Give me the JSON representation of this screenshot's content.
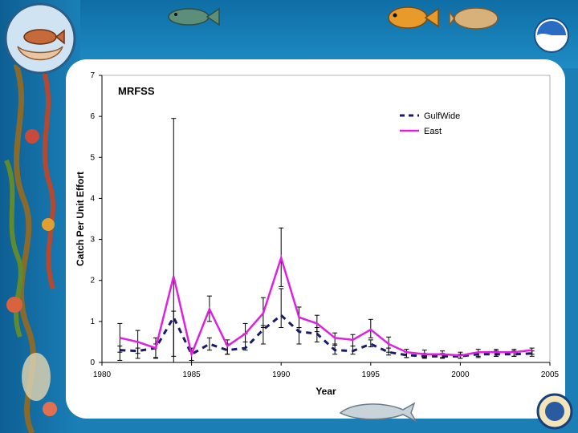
{
  "chart_data": {
    "type": "line",
    "title": "MRFSS",
    "xlabel": "Year",
    "ylabel": "Catch Per Unit Effort",
    "xlim": [
      1980,
      2005
    ],
    "ylim": [
      0,
      7
    ],
    "x_ticks": [
      1980,
      1985,
      1990,
      1995,
      2000,
      2005
    ],
    "y_ticks": [
      0,
      1,
      2,
      3,
      4,
      5,
      6,
      7
    ],
    "legend_position": "top-right",
    "series": [
      {
        "name": "GulfWide",
        "style": "dashed",
        "color": "#1a1a66",
        "x": [
          1981,
          1982,
          1983,
          1984,
          1985,
          1986,
          1987,
          1988,
          1989,
          1990,
          1991,
          1992,
          1993,
          1994,
          1995,
          1996,
          1997,
          1998,
          1999,
          2000,
          2001,
          2002,
          2003,
          2004
        ],
        "y": [
          0.3,
          0.28,
          0.35,
          1.1,
          0.2,
          0.45,
          0.3,
          0.35,
          0.8,
          1.15,
          0.75,
          0.7,
          0.3,
          0.28,
          0.45,
          0.25,
          0.18,
          0.15,
          0.15,
          0.15,
          0.2,
          0.2,
          0.2,
          0.22
        ],
        "err_low": [
          0.05,
          0.1,
          0.1,
          0.15,
          0.05,
          0.3,
          0.2,
          0.3,
          0.45,
          0.85,
          0.45,
          0.5,
          0.2,
          0.2,
          0.38,
          0.18,
          0.12,
          0.1,
          0.1,
          0.1,
          0.12,
          0.15,
          0.15,
          0.15
        ],
        "err_high": [
          0.4,
          0.35,
          0.45,
          1.25,
          0.3,
          0.6,
          0.45,
          0.7,
          0.9,
          1.8,
          0.85,
          0.85,
          0.45,
          0.4,
          0.55,
          0.35,
          0.25,
          0.22,
          0.22,
          0.2,
          0.25,
          0.28,
          0.28,
          0.28
        ]
      },
      {
        "name": "East",
        "style": "solid",
        "color": "#e020e0",
        "x": [
          1981,
          1982,
          1983,
          1984,
          1985,
          1986,
          1987,
          1988,
          1989,
          1990,
          1991,
          1992,
          1993,
          1994,
          1995,
          1996,
          1997,
          1998,
          1999,
          2000,
          2001,
          2002,
          2003,
          2004
        ],
        "y": [
          0.6,
          0.5,
          0.35,
          2.1,
          0.2,
          1.3,
          0.4,
          0.7,
          1.2,
          2.55,
          1.1,
          0.95,
          0.6,
          0.55,
          0.8,
          0.45,
          0.25,
          0.2,
          0.2,
          0.17,
          0.25,
          0.25,
          0.25,
          0.3
        ],
        "err_low": [
          0.25,
          0.22,
          0.12,
          0.0,
          0.0,
          1.0,
          0.2,
          0.5,
          0.85,
          1.85,
          0.85,
          0.75,
          0.42,
          0.4,
          0.6,
          0.25,
          0.12,
          0.12,
          0.12,
          0.1,
          0.15,
          0.15,
          0.15,
          0.2
        ],
        "err_high": [
          0.95,
          0.78,
          0.6,
          5.95,
          0.35,
          1.62,
          0.55,
          0.95,
          1.58,
          3.28,
          1.35,
          1.15,
          0.72,
          0.68,
          1.05,
          0.62,
          0.32,
          0.3,
          0.28,
          0.25,
          0.32,
          0.32,
          0.32,
          0.35
        ]
      }
    ]
  }
}
